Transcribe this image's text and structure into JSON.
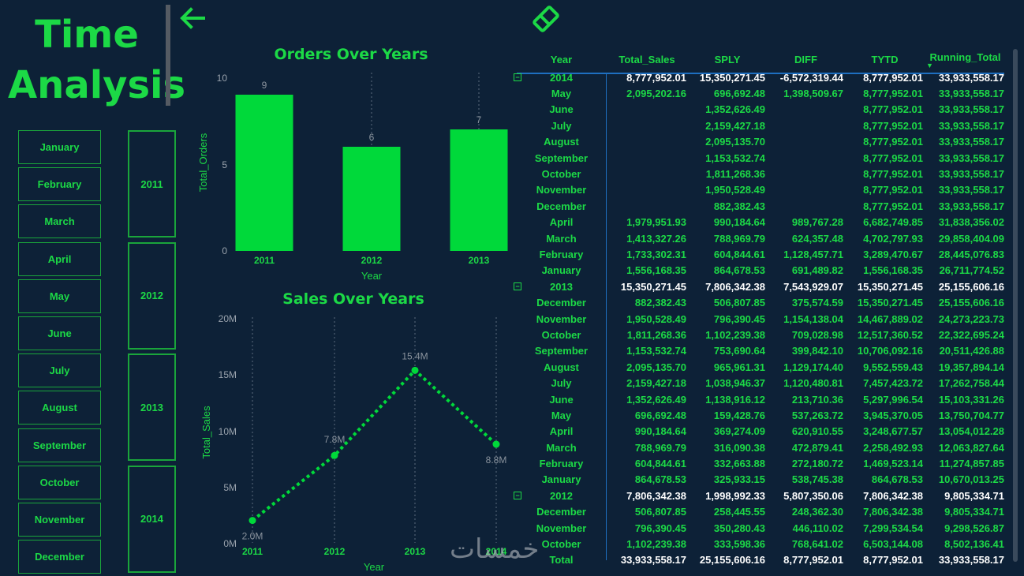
{
  "page": {
    "title_line1": "Time",
    "title_line2": "Analysis",
    "back_icon": "arrow-left-icon",
    "clear_icon": "eraser-icon"
  },
  "colors": {
    "background": "#0d2137",
    "accent": "#1cd946",
    "bar": "#00d93a",
    "divider": "#1e6fc0"
  },
  "months_slicer": [
    "January",
    "February",
    "March",
    "April",
    "May",
    "June",
    "July",
    "August",
    "September",
    "October",
    "November",
    "December"
  ],
  "years_slicer": [
    "2011",
    "2012",
    "2013",
    "2014"
  ],
  "orders_chart": {
    "title": "Orders Over Years",
    "xlabel": "Year",
    "ylabel": "Total_Orders",
    "yticks": [
      "10",
      "5",
      "0"
    ]
  },
  "sales_chart": {
    "title": "Sales Over Years",
    "xlabel": "Year",
    "ylabel": "Total_Sales",
    "yticks": [
      "20M",
      "15M",
      "10M",
      "5M",
      "0M"
    ]
  },
  "chart_data": [
    {
      "type": "bar",
      "title": "Orders Over Years",
      "xlabel": "Year",
      "ylabel": "Total_Orders",
      "categories": [
        "2011",
        "2012",
        "2013"
      ],
      "values": [
        9,
        6,
        7
      ],
      "data_labels": [
        "9",
        "6",
        "7"
      ],
      "ylim": [
        0,
        10
      ]
    },
    {
      "type": "line",
      "title": "Sales Over Years",
      "xlabel": "Year",
      "ylabel": "Total_Sales",
      "x": [
        "2011",
        "2012",
        "2013",
        "2014"
      ],
      "values": [
        2.0,
        7.8,
        15.4,
        8.8
      ],
      "data_labels": [
        "2.0M",
        "7.8M",
        "15.4M",
        "8.8M"
      ],
      "ylim": [
        0,
        20
      ],
      "unit": "M"
    }
  ],
  "matrix": {
    "headers": [
      "Year",
      "Total_Sales",
      "SPLY",
      "DIFF",
      "TYTD",
      "Running_Total"
    ],
    "rows": [
      {
        "kind": "year",
        "label": "2014",
        "cells": [
          "8,777,952.01",
          "15,350,271.45",
          "-6,572,319.44",
          "8,777,952.01",
          "33,933,558.17"
        ]
      },
      {
        "kind": "month",
        "label": "May",
        "cells": [
          "2,095,202.16",
          "696,692.48",
          "1,398,509.67",
          "8,777,952.01",
          "33,933,558.17"
        ]
      },
      {
        "kind": "month",
        "label": "June",
        "cells": [
          "",
          "1,352,626.49",
          "",
          "8,777,952.01",
          "33,933,558.17"
        ]
      },
      {
        "kind": "month",
        "label": "July",
        "cells": [
          "",
          "2,159,427.18",
          "",
          "8,777,952.01",
          "33,933,558.17"
        ]
      },
      {
        "kind": "month",
        "label": "August",
        "cells": [
          "",
          "2,095,135.70",
          "",
          "8,777,952.01",
          "33,933,558.17"
        ]
      },
      {
        "kind": "month",
        "label": "September",
        "cells": [
          "",
          "1,153,532.74",
          "",
          "8,777,952.01",
          "33,933,558.17"
        ]
      },
      {
        "kind": "month",
        "label": "October",
        "cells": [
          "",
          "1,811,268.36",
          "",
          "8,777,952.01",
          "33,933,558.17"
        ]
      },
      {
        "kind": "month",
        "label": "November",
        "cells": [
          "",
          "1,950,528.49",
          "",
          "8,777,952.01",
          "33,933,558.17"
        ]
      },
      {
        "kind": "month",
        "label": "December",
        "cells": [
          "",
          "882,382.43",
          "",
          "8,777,952.01",
          "33,933,558.17"
        ]
      },
      {
        "kind": "month",
        "label": "April",
        "cells": [
          "1,979,951.93",
          "990,184.64",
          "989,767.28",
          "6,682,749.85",
          "31,838,356.02"
        ]
      },
      {
        "kind": "month",
        "label": "March",
        "cells": [
          "1,413,327.26",
          "788,969.79",
          "624,357.48",
          "4,702,797.93",
          "29,858,404.09"
        ]
      },
      {
        "kind": "month",
        "label": "February",
        "cells": [
          "1,733,302.31",
          "604,844.61",
          "1,128,457.71",
          "3,289,470.67",
          "28,445,076.83"
        ]
      },
      {
        "kind": "month",
        "label": "January",
        "cells": [
          "1,556,168.35",
          "864,678.53",
          "691,489.82",
          "1,556,168.35",
          "26,711,774.52"
        ]
      },
      {
        "kind": "year",
        "label": "2013",
        "cells": [
          "15,350,271.45",
          "7,806,342.38",
          "7,543,929.07",
          "15,350,271.45",
          "25,155,606.16"
        ]
      },
      {
        "kind": "month",
        "label": "December",
        "cells": [
          "882,382.43",
          "506,807.85",
          "375,574.59",
          "15,350,271.45",
          "25,155,606.16"
        ]
      },
      {
        "kind": "month",
        "label": "November",
        "cells": [
          "1,950,528.49",
          "796,390.45",
          "1,154,138.04",
          "14,467,889.02",
          "24,273,223.73"
        ]
      },
      {
        "kind": "month",
        "label": "October",
        "cells": [
          "1,811,268.36",
          "1,102,239.38",
          "709,028.98",
          "12,517,360.52",
          "22,322,695.24"
        ]
      },
      {
        "kind": "month",
        "label": "September",
        "cells": [
          "1,153,532.74",
          "753,690.64",
          "399,842.10",
          "10,706,092.16",
          "20,511,426.88"
        ]
      },
      {
        "kind": "month",
        "label": "August",
        "cells": [
          "2,095,135.70",
          "965,961.31",
          "1,129,174.40",
          "9,552,559.43",
          "19,357,894.14"
        ]
      },
      {
        "kind": "month",
        "label": "July",
        "cells": [
          "2,159,427.18",
          "1,038,946.37",
          "1,120,480.81",
          "7,457,423.72",
          "17,262,758.44"
        ]
      },
      {
        "kind": "month",
        "label": "June",
        "cells": [
          "1,352,626.49",
          "1,138,916.12",
          "213,710.36",
          "5,297,996.54",
          "15,103,331.26"
        ]
      },
      {
        "kind": "month",
        "label": "May",
        "cells": [
          "696,692.48",
          "159,428.76",
          "537,263.72",
          "3,945,370.05",
          "13,750,704.77"
        ]
      },
      {
        "kind": "month",
        "label": "April",
        "cells": [
          "990,184.64",
          "369,274.09",
          "620,910.55",
          "3,248,677.57",
          "13,054,012.28"
        ]
      },
      {
        "kind": "month",
        "label": "March",
        "cells": [
          "788,969.79",
          "316,090.38",
          "472,879.41",
          "2,258,492.93",
          "12,063,827.64"
        ]
      },
      {
        "kind": "month",
        "label": "February",
        "cells": [
          "604,844.61",
          "332,663.88",
          "272,180.72",
          "1,469,523.14",
          "11,274,857.85"
        ]
      },
      {
        "kind": "month",
        "label": "January",
        "cells": [
          "864,678.53",
          "325,933.15",
          "538,745.38",
          "864,678.53",
          "10,670,013.25"
        ]
      },
      {
        "kind": "year",
        "label": "2012",
        "cells": [
          "7,806,342.38",
          "1,998,992.33",
          "5,807,350.06",
          "7,806,342.38",
          "9,805,334.71"
        ]
      },
      {
        "kind": "month",
        "label": "December",
        "cells": [
          "506,807.85",
          "258,445.55",
          "248,362.30",
          "7,806,342.38",
          "9,805,334.71"
        ]
      },
      {
        "kind": "month",
        "label": "November",
        "cells": [
          "796,390.45",
          "350,280.43",
          "446,110.02",
          "7,299,534.54",
          "9,298,526.87"
        ]
      },
      {
        "kind": "month",
        "label": "October",
        "cells": [
          "1,102,239.38",
          "333,598.36",
          "768,641.02",
          "6,503,144.08",
          "8,502,136.41"
        ]
      }
    ],
    "total": {
      "label": "Total",
      "cells": [
        "33,933,558.17",
        "25,155,606.16",
        "8,777,952.01",
        "8,777,952.01",
        "33,933,558.17"
      ]
    }
  },
  "watermark": "خمسات"
}
